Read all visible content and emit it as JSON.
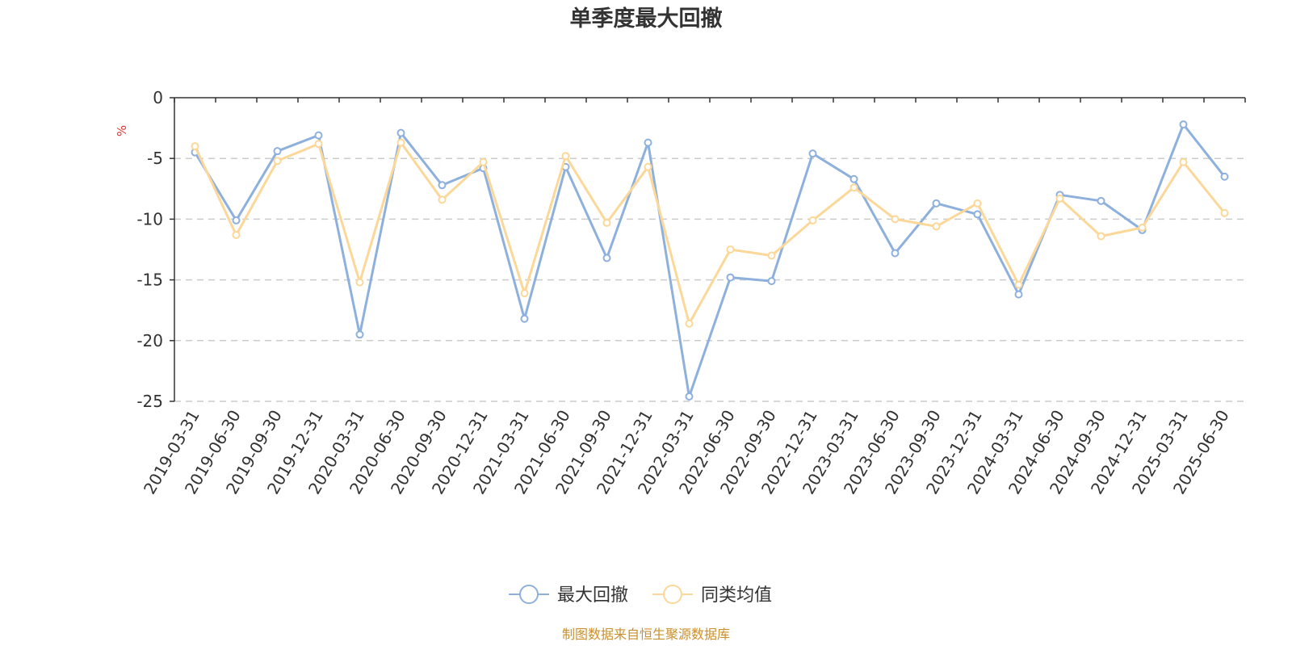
{
  "chart_data": {
    "type": "line",
    "title": "单季度最大回撤",
    "ylabel": "%",
    "ylim": [
      -25,
      0
    ],
    "yticks": [
      0,
      -5,
      -10,
      -15,
      -20,
      -25
    ],
    "grid": true,
    "legend_position": "bottom-center",
    "categories": [
      "2019-03-31",
      "2019-06-30",
      "2019-09-30",
      "2019-12-31",
      "2020-03-31",
      "2020-06-30",
      "2020-09-30",
      "2020-12-31",
      "2021-03-31",
      "2021-06-30",
      "2021-09-30",
      "2021-12-31",
      "2022-03-31",
      "2022-06-30",
      "2022-09-30",
      "2022-12-31",
      "2023-03-31",
      "2023-06-30",
      "2023-09-30",
      "2023-12-31",
      "2024-03-31",
      "2024-06-30",
      "2024-09-30",
      "2024-12-31",
      "2025-03-31",
      "2025-06-30"
    ],
    "series": [
      {
        "name": "最大回撤",
        "color": "#8eb0dd",
        "values": [
          -4.5,
          -10.1,
          -4.4,
          -3.1,
          -19.5,
          -2.9,
          -7.2,
          -5.8,
          -18.2,
          -5.7,
          -13.2,
          -3.7,
          -24.6,
          -14.8,
          -15.1,
          -4.6,
          -6.7,
          -12.8,
          -8.7,
          -9.6,
          -16.2,
          -8.0,
          -8.5,
          -10.9,
          -2.2,
          -6.5
        ]
      },
      {
        "name": "同类均值",
        "color": "#fbd899",
        "values": [
          -4.0,
          -11.3,
          -5.2,
          -3.8,
          -15.2,
          -3.7,
          -8.4,
          -5.3,
          -16.1,
          -4.8,
          -10.3,
          -5.7,
          -18.6,
          -12.5,
          -13.0,
          -10.1,
          -7.4,
          -10.0,
          -10.6,
          -8.7,
          -15.4,
          -8.3,
          -11.4,
          -10.7,
          -5.3,
          -9.5
        ]
      }
    ]
  },
  "footer": {
    "source": "制图数据来自恒生聚源数据库"
  }
}
